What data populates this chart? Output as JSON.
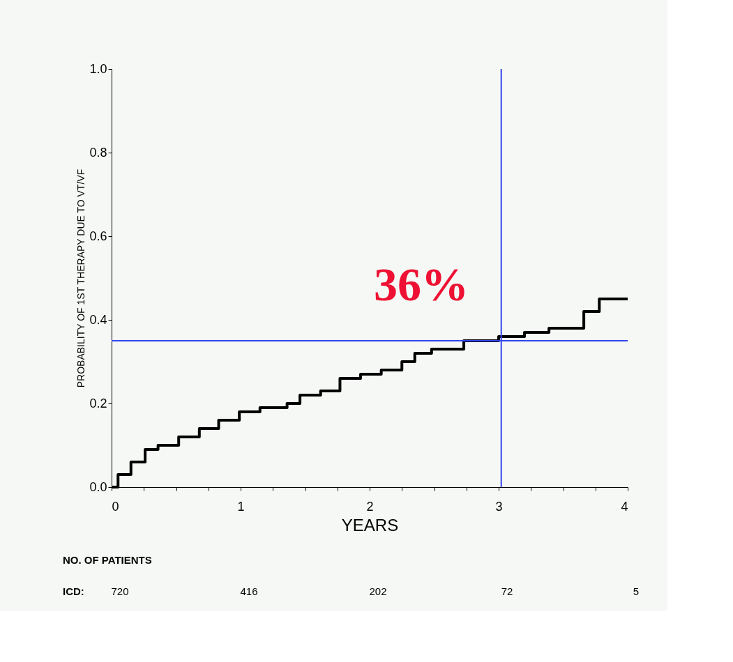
{
  "chart_data": {
    "type": "step",
    "xlabel": "YEARS",
    "ylabel": "PROBABILITY OF 1ST THERAPY DUE TO VT/VF",
    "x": [
      0,
      0.05,
      0.15,
      0.26,
      0.36,
      0.52,
      0.68,
      0.83,
      0.99,
      1.15,
      1.36,
      1.46,
      1.62,
      1.77,
      1.93,
      2.09,
      2.25,
      2.35,
      2.48,
      2.73,
      3.0,
      3.2,
      3.39,
      3.66,
      3.78,
      4.0
    ],
    "series": [
      {
        "color": "#000000",
        "values": [
          0,
          0.03,
          0.06,
          0.09,
          0.1,
          0.12,
          0.14,
          0.16,
          0.18,
          0.19,
          0.2,
          0.22,
          0.23,
          0.26,
          0.27,
          0.28,
          0.3,
          0.32,
          0.33,
          0.35,
          0.36,
          0.37,
          0.38,
          0.42,
          0.45,
          0.45
        ]
      }
    ],
    "xlim": [
      0,
      4
    ],
    "ylim": [
      0,
      1
    ],
    "xticks": [
      0,
      {
        "value": 0.25,
        "label": null
      },
      {
        "value": 0.5,
        "label": null
      },
      {
        "value": 0.75,
        "label": null
      },
      1,
      {
        "value": 1.25,
        "label": null
      },
      {
        "value": 1.5,
        "label": null
      },
      {
        "value": 1.75,
        "label": null
      },
      2,
      {
        "value": 2.25,
        "label": null
      },
      {
        "value": 2.5,
        "label": null
      },
      {
        "value": 2.75,
        "label": null
      },
      3,
      {
        "value": 3.25,
        "label": null
      },
      {
        "value": 3.5,
        "label": null
      },
      {
        "value": 3.75,
        "label": null
      },
      4
    ],
    "yticks": [
      {
        "value": 0,
        "label": "0.0"
      },
      {
        "value": 0.2,
        "label": "0.2"
      },
      {
        "value": 0.4,
        "label": "0.4"
      },
      {
        "value": 0.6,
        "label": "0.6"
      },
      {
        "value": 0.8,
        "label": "0.8"
      },
      {
        "value": 1,
        "label": "1.0"
      }
    ],
    "ref_lines": [
      {
        "axis": "y",
        "value": 0.35,
        "color": "#3344ee"
      },
      {
        "axis": "x",
        "value": 3.02,
        "color": "#3344ee"
      }
    ],
    "annotations": [
      "36%",
      "NO. OF PATIENTS",
      "ICD:",
      "720",
      "416",
      "202",
      "72",
      "5"
    ],
    "grid": false
  }
}
